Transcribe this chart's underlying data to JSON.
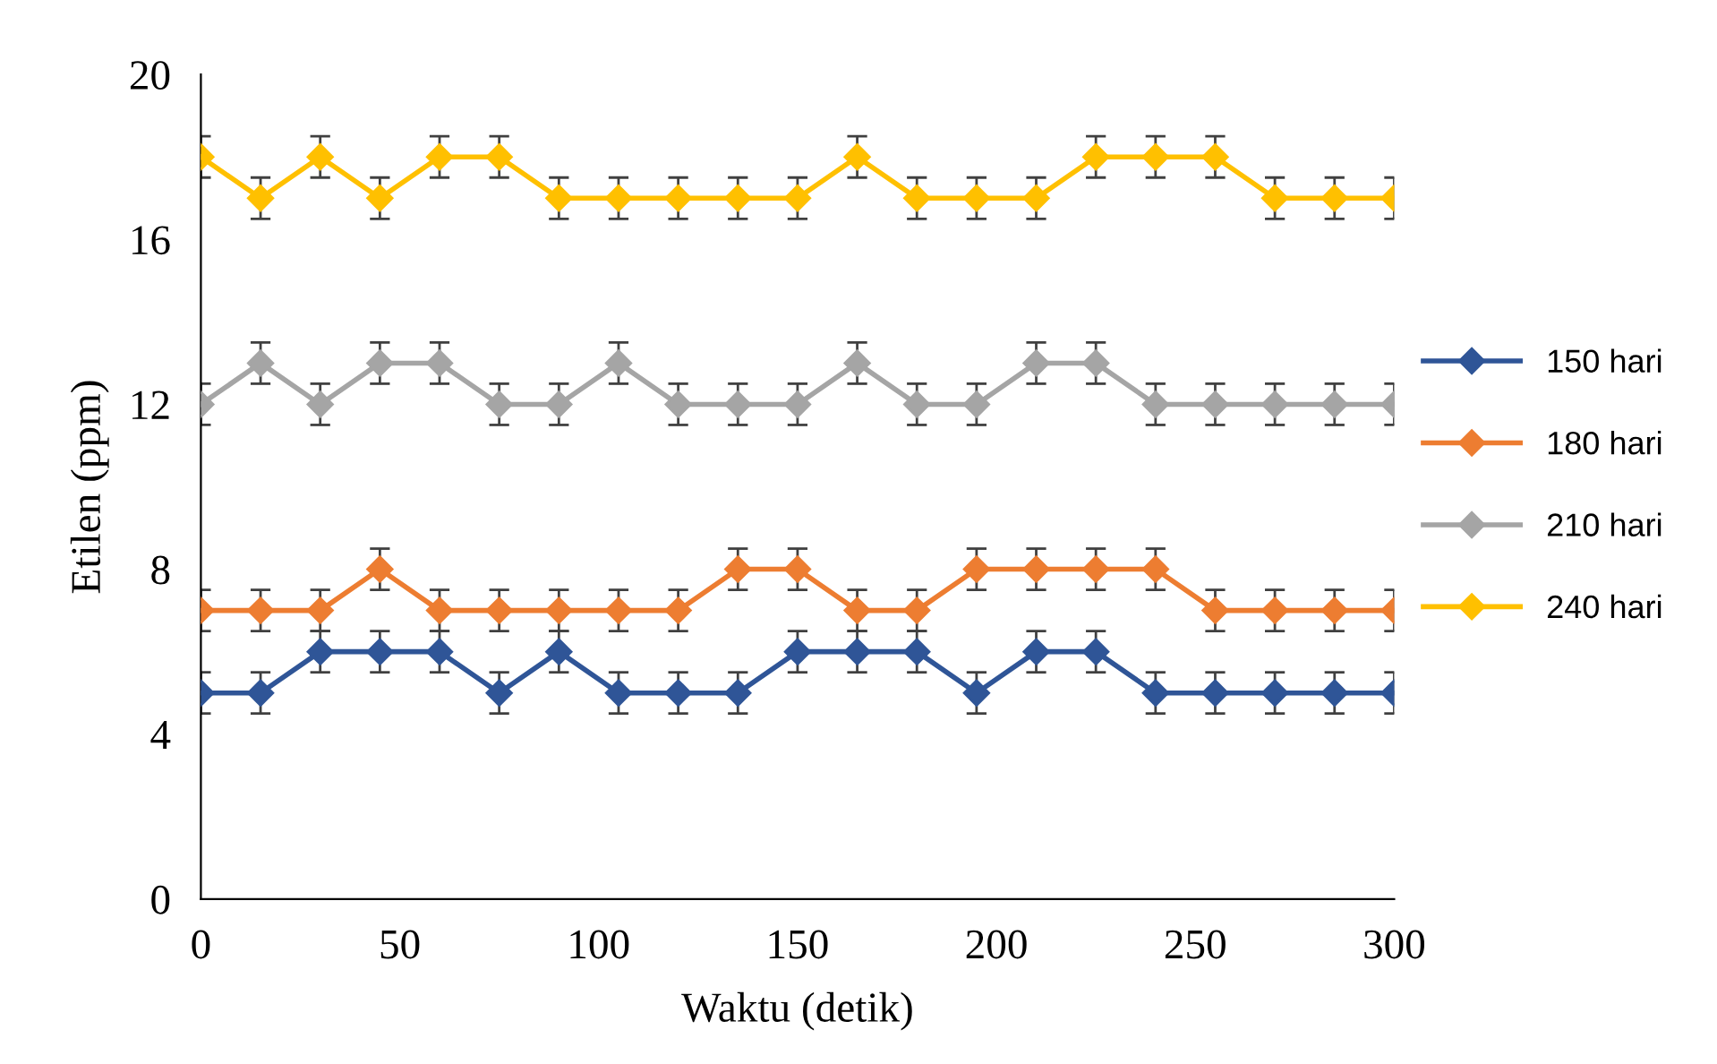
{
  "chart_data": {
    "type": "line",
    "xlabel": "Waktu (detik)",
    "ylabel": "Etilen (ppm)",
    "x": [
      0,
      15,
      30,
      45,
      60,
      75,
      90,
      105,
      120,
      135,
      150,
      165,
      180,
      195,
      210,
      225,
      240,
      255,
      270,
      285,
      300
    ],
    "xlim": [
      0,
      300
    ],
    "xticks": [
      0,
      50,
      100,
      150,
      200,
      250,
      300
    ],
    "ylim": [
      0,
      20
    ],
    "yticks": [
      0,
      4,
      8,
      12,
      16,
      20
    ],
    "grid": false,
    "legend": "right",
    "marker": "diamond",
    "line_style": "solid",
    "series": [
      {
        "name": "150 hari",
        "color": "#2f5597",
        "values": [
          5,
          5,
          6,
          6,
          6,
          5,
          6,
          5,
          5,
          5,
          6,
          6,
          6,
          5,
          6,
          6,
          5,
          5,
          5,
          5,
          5
        ],
        "errors": [
          0.5,
          0.5,
          0.5,
          0.5,
          0.5,
          0.5,
          0.5,
          0.5,
          0.5,
          0.5,
          0.5,
          0.5,
          0.5,
          0.5,
          0.5,
          0.5,
          0.5,
          0.5,
          0.5,
          0.5,
          0.5
        ]
      },
      {
        "name": "180 hari",
        "color": "#ed7d31",
        "values": [
          7,
          7,
          7,
          8,
          7,
          7,
          7,
          7,
          7,
          8,
          8,
          7,
          7,
          8,
          8,
          8,
          8,
          7,
          7,
          7,
          7
        ],
        "errors": [
          0.5,
          0.5,
          0.5,
          0.5,
          0.5,
          0.5,
          0.5,
          0.5,
          0.5,
          0.5,
          0.5,
          0.5,
          0.5,
          0.5,
          0.5,
          0.5,
          0.5,
          0.5,
          0.5,
          0.5,
          0.5
        ]
      },
      {
        "name": "210 hari",
        "color": "#a5a5a5",
        "values": [
          12,
          13,
          12,
          13,
          13,
          12,
          12,
          13,
          12,
          12,
          12,
          13,
          12,
          12,
          13,
          13,
          12,
          12,
          12,
          12,
          12
        ],
        "errors": [
          0.5,
          0.5,
          0.5,
          0.5,
          0.5,
          0.5,
          0.5,
          0.5,
          0.5,
          0.5,
          0.5,
          0.5,
          0.5,
          0.5,
          0.5,
          0.5,
          0.5,
          0.5,
          0.5,
          0.5,
          0.5
        ]
      },
      {
        "name": "240 hari",
        "color": "#ffc000",
        "values": [
          18,
          17,
          18,
          17,
          18,
          18,
          17,
          17,
          17,
          17,
          17,
          18,
          17,
          17,
          17,
          18,
          18,
          18,
          17,
          17,
          17
        ],
        "errors": [
          0.5,
          0.5,
          0.5,
          0.5,
          0.5,
          0.5,
          0.5,
          0.5,
          0.5,
          0.5,
          0.5,
          0.5,
          0.5,
          0.5,
          0.5,
          0.5,
          0.5,
          0.5,
          0.5,
          0.5,
          0.5
        ]
      }
    ]
  }
}
